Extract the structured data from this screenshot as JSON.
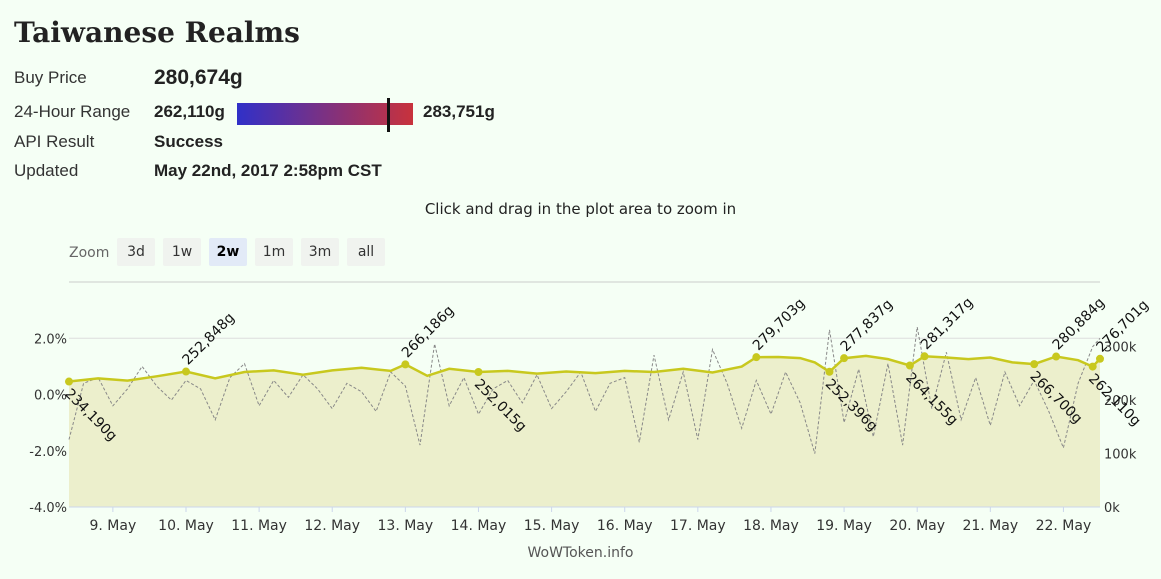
{
  "header": {
    "title": "Taiwanese Realms"
  },
  "info": {
    "buy_price_label": "Buy Price",
    "buy_price": "280,674g",
    "range_label": "24-Hour Range",
    "range_low": "262,110g",
    "range_high": "283,751g",
    "range_position": 0.858,
    "range_colors": [
      "#3030c8",
      "#c8323c"
    ],
    "api_label": "API Result",
    "api_value": "Success",
    "updated_label": "Updated",
    "updated_value": "May 22nd, 2017 2:58pm CST"
  },
  "hint": "Click and drag in the plot area to zoom in",
  "zoom": {
    "label": "Zoom",
    "buttons": [
      "3d",
      "1w",
      "2w",
      "1m",
      "3m",
      "all"
    ],
    "selected": "2w"
  },
  "credit": "WoWToken.info",
  "chart_data": {
    "type": "line",
    "colors": {
      "price": "#c8c81e",
      "area": "#ecefcc",
      "change": "#888888"
    },
    "x_labels": [
      "9. May",
      "10. May",
      "11. May",
      "12. May",
      "13. May",
      "14. May",
      "15. May",
      "16. May",
      "17. May",
      "18. May",
      "19. May",
      "20. May",
      "21. May",
      "22. May"
    ],
    "x_range": [
      8.4,
      22.5
    ],
    "left_axis": {
      "ticks": [
        "2.0%",
        "0.0%",
        "-2.0%",
        "-4.0%"
      ],
      "values": [
        2,
        0,
        -2,
        -4
      ],
      "range": [
        -4,
        4
      ]
    },
    "right_axis": {
      "ticks": [
        "300k",
        "200k",
        "100k",
        "0k"
      ],
      "values": [
        300000,
        200000,
        100000,
        0
      ],
      "range": [
        0,
        420000
      ]
    },
    "series": [
      {
        "kind": "price",
        "x": [
          8.4,
          8.8,
          9.2,
          9.6,
          10.0,
          10.4,
          10.8,
          11.2,
          11.6,
          12.0,
          12.4,
          12.8,
          13.0,
          13.3,
          13.6,
          14.0,
          14.4,
          14.8,
          15.2,
          15.6,
          16.0,
          16.4,
          16.8,
          17.2,
          17.6,
          17.8,
          18.1,
          18.4,
          18.6,
          18.8,
          19.0,
          19.3,
          19.6,
          19.9,
          20.1,
          20.4,
          20.7,
          21.0,
          21.3,
          21.6,
          21.9,
          22.2,
          22.4,
          22.5
        ],
        "values": [
          234190,
          240000,
          236000,
          244000,
          252848,
          240000,
          252000,
          255000,
          247000,
          255000,
          260000,
          254000,
          266186,
          245000,
          258000,
          252015,
          254000,
          249000,
          253000,
          250000,
          254000,
          252000,
          258000,
          251000,
          262000,
          279703,
          280000,
          278000,
          270000,
          252396,
          277837,
          282000,
          276000,
          264155,
          281317,
          279000,
          276000,
          279000,
          270000,
          266700,
          280884,
          274000,
          262110,
          276701
        ]
      },
      {
        "kind": "change",
        "x": [
          8.4,
          8.6,
          8.8,
          9.0,
          9.2,
          9.4,
          9.6,
          9.8,
          10.0,
          10.2,
          10.4,
          10.6,
          10.8,
          11.0,
          11.2,
          11.4,
          11.6,
          11.8,
          12.0,
          12.2,
          12.4,
          12.6,
          12.8,
          13.0,
          13.2,
          13.4,
          13.6,
          13.8,
          14.0,
          14.2,
          14.4,
          14.6,
          14.8,
          15.0,
          15.2,
          15.4,
          15.6,
          15.8,
          16.0,
          16.2,
          16.4,
          16.6,
          16.8,
          17.0,
          17.2,
          17.4,
          17.6,
          17.8,
          18.0,
          18.2,
          18.4,
          18.6,
          18.8,
          19.0,
          19.2,
          19.4,
          19.6,
          19.8,
          20.0,
          20.2,
          20.4,
          20.6,
          20.8,
          21.0,
          21.2,
          21.4,
          21.6,
          21.8,
          22.0,
          22.2,
          22.4,
          22.5
        ],
        "values": [
          -1.6,
          0.4,
          0.6,
          -0.4,
          0.2,
          1.0,
          0.3,
          -0.2,
          0.5,
          0.2,
          -0.9,
          0.6,
          1.1,
          -0.4,
          0.5,
          -0.1,
          0.7,
          0.2,
          -0.5,
          0.4,
          0.1,
          -0.6,
          0.8,
          0.3,
          -1.8,
          1.8,
          -0.4,
          0.6,
          -0.7,
          0.2,
          0.5,
          -0.3,
          0.7,
          -0.5,
          0.1,
          0.8,
          -0.6,
          0.4,
          0.6,
          -1.7,
          1.4,
          -0.9,
          0.8,
          -1.6,
          1.6,
          0.4,
          -1.2,
          0.5,
          -0.7,
          0.8,
          -0.3,
          -2.1,
          2.3,
          -1.0,
          0.9,
          -1.5,
          1.1,
          -1.8,
          2.4,
          -0.5,
          1.5,
          -0.9,
          0.6,
          -1.1,
          0.8,
          -0.4,
          0.5,
          -0.6,
          -1.9,
          0.4,
          1.7,
          2.0
        ]
      }
    ],
    "markers": [
      {
        "x": 8.4,
        "value": 234190,
        "label": "234,190g",
        "side": "below"
      },
      {
        "x": 10.0,
        "value": 252848,
        "label": "252,848g",
        "side": "above"
      },
      {
        "x": 13.0,
        "value": 266186,
        "label": "266,186g",
        "side": "above"
      },
      {
        "x": 14.0,
        "value": 252015,
        "label": "252,015g",
        "side": "below"
      },
      {
        "x": 17.8,
        "value": 279703,
        "label": "279,703g",
        "side": "above"
      },
      {
        "x": 18.8,
        "value": 252396,
        "label": "252,396g",
        "side": "below"
      },
      {
        "x": 19.0,
        "value": 277837,
        "label": "277,837g",
        "side": "above"
      },
      {
        "x": 19.9,
        "value": 264155,
        "label": "264,155g",
        "side": "below"
      },
      {
        "x": 20.1,
        "value": 281317,
        "label": "281,317g",
        "side": "above"
      },
      {
        "x": 21.6,
        "value": 266700,
        "label": "266,700g",
        "side": "below"
      },
      {
        "x": 21.9,
        "value": 280884,
        "label": "280,884g",
        "side": "above"
      },
      {
        "x": 22.4,
        "value": 262110,
        "label": "262,110g",
        "side": "below"
      },
      {
        "x": 22.5,
        "value": 276701,
        "label": "276,701g",
        "side": "above"
      }
    ]
  }
}
